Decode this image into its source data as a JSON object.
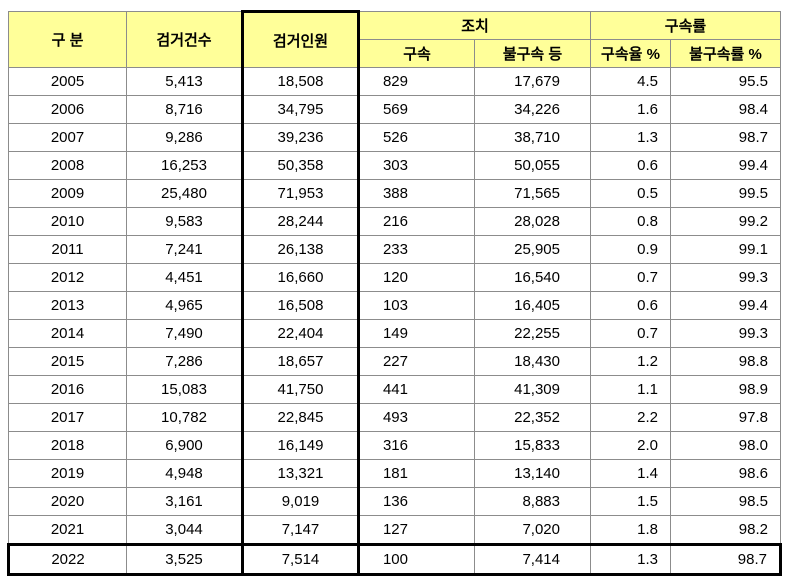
{
  "headers": {
    "category": "구 분",
    "cases": "검거건수",
    "persons": "검거인원",
    "action": "조치",
    "arrest": "구속",
    "nonarrest": "불구속 등",
    "rate_group": "구속률",
    "arrest_rate": "구속율 %",
    "nonarrest_rate": "불구속률 %"
  },
  "rows": [
    {
      "year": "2005",
      "cases": "5,413",
      "persons": "18,508",
      "arrest": "829",
      "nonarrest": "17,679",
      "arrest_rate": "4.5",
      "nonarrest_rate": "95.5"
    },
    {
      "year": "2006",
      "cases": "8,716",
      "persons": "34,795",
      "arrest": "569",
      "nonarrest": "34,226",
      "arrest_rate": "1.6",
      "nonarrest_rate": "98.4"
    },
    {
      "year": "2007",
      "cases": "9,286",
      "persons": "39,236",
      "arrest": "526",
      "nonarrest": "38,710",
      "arrest_rate": "1.3",
      "nonarrest_rate": "98.7"
    },
    {
      "year": "2008",
      "cases": "16,253",
      "persons": "50,358",
      "arrest": "303",
      "nonarrest": "50,055",
      "arrest_rate": "0.6",
      "nonarrest_rate": "99.4"
    },
    {
      "year": "2009",
      "cases": "25,480",
      "persons": "71,953",
      "arrest": "388",
      "nonarrest": "71,565",
      "arrest_rate": "0.5",
      "nonarrest_rate": "99.5"
    },
    {
      "year": "2010",
      "cases": "9,583",
      "persons": "28,244",
      "arrest": "216",
      "nonarrest": "28,028",
      "arrest_rate": "0.8",
      "nonarrest_rate": "99.2"
    },
    {
      "year": "2011",
      "cases": "7,241",
      "persons": "26,138",
      "arrest": "233",
      "nonarrest": "25,905",
      "arrest_rate": "0.9",
      "nonarrest_rate": "99.1"
    },
    {
      "year": "2012",
      "cases": "4,451",
      "persons": "16,660",
      "arrest": "120",
      "nonarrest": "16,540",
      "arrest_rate": "0.7",
      "nonarrest_rate": "99.3"
    },
    {
      "year": "2013",
      "cases": "4,965",
      "persons": "16,508",
      "arrest": "103",
      "nonarrest": "16,405",
      "arrest_rate": "0.6",
      "nonarrest_rate": "99.4"
    },
    {
      "year": "2014",
      "cases": "7,490",
      "persons": "22,404",
      "arrest": "149",
      "nonarrest": "22,255",
      "arrest_rate": "0.7",
      "nonarrest_rate": "99.3"
    },
    {
      "year": "2015",
      "cases": "7,286",
      "persons": "18,657",
      "arrest": "227",
      "nonarrest": "18,430",
      "arrest_rate": "1.2",
      "nonarrest_rate": "98.8"
    },
    {
      "year": "2016",
      "cases": "15,083",
      "persons": "41,750",
      "arrest": "441",
      "nonarrest": "41,309",
      "arrest_rate": "1.1",
      "nonarrest_rate": "98.9"
    },
    {
      "year": "2017",
      "cases": "10,782",
      "persons": "22,845",
      "arrest": "493",
      "nonarrest": "22,352",
      "arrest_rate": "2.2",
      "nonarrest_rate": "97.8"
    },
    {
      "year": "2018",
      "cases": "6,900",
      "persons": "16,149",
      "arrest": "316",
      "nonarrest": "15,833",
      "arrest_rate": "2.0",
      "nonarrest_rate": "98.0"
    },
    {
      "year": "2019",
      "cases": "4,948",
      "persons": "13,321",
      "arrest": "181",
      "nonarrest": "13,140",
      "arrest_rate": "1.4",
      "nonarrest_rate": "98.6"
    },
    {
      "year": "2020",
      "cases": "3,161",
      "persons": "9,019",
      "arrest": "136",
      "nonarrest": "8,883",
      "arrest_rate": "1.5",
      "nonarrest_rate": "98.5"
    },
    {
      "year": "2021",
      "cases": "3,044",
      "persons": "7,147",
      "arrest": "127",
      "nonarrest": "7,020",
      "arrest_rate": "1.8",
      "nonarrest_rate": "98.2"
    },
    {
      "year": "2022",
      "cases": "3,525",
      "persons": "7,514",
      "arrest": "100",
      "nonarrest": "7,414",
      "arrest_rate": "1.3",
      "nonarrest_rate": "98.7"
    }
  ],
  "colors": {
    "header_bg": "#ffff99",
    "grid": "#8c8c8c",
    "highlight_border": "#000000"
  }
}
